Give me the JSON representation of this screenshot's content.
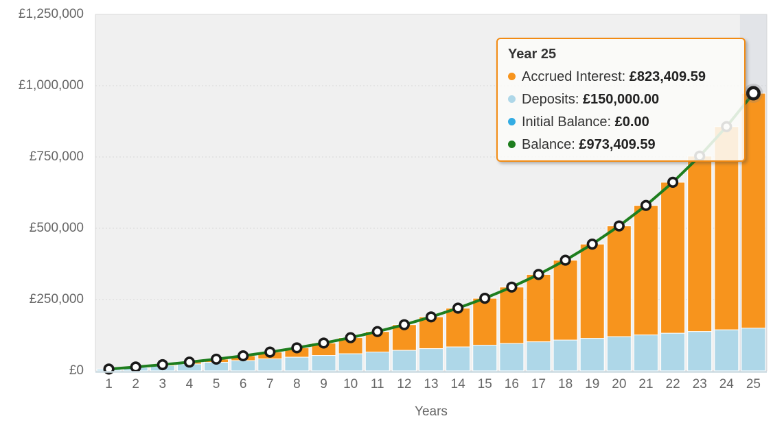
{
  "chart_data": {
    "type": "bar",
    "subtype": "stacked-column-with-line",
    "title": "",
    "xlabel": "Years",
    "ylabel": "",
    "categories": [
      "1",
      "2",
      "3",
      "4",
      "5",
      "6",
      "7",
      "8",
      "9",
      "10",
      "11",
      "12",
      "13",
      "14",
      "15",
      "16",
      "17",
      "18",
      "19",
      "20",
      "21",
      "22",
      "23",
      "24",
      "25"
    ],
    "ylim": [
      0,
      1250000
    ],
    "yticks": [
      0,
      250000,
      500000,
      750000,
      1000000,
      1250000
    ],
    "ytick_labels": [
      "£0",
      "£250,000",
      "£500,000",
      "£750,000",
      "£1,000,000",
      "£1,250,000"
    ],
    "grid": true,
    "legend_position": "none",
    "highlighted_year": 25,
    "series": [
      {
        "name": "Initial Balance",
        "type": "column",
        "color": "#33ace3",
        "values": [
          0,
          0,
          0,
          0,
          0,
          0,
          0,
          0,
          0,
          0,
          0,
          0,
          0,
          0,
          0,
          0,
          0,
          0,
          0,
          0,
          0,
          0,
          0,
          0,
          0
        ]
      },
      {
        "name": "Deposits",
        "type": "column",
        "color": "#aed7e8",
        "values": [
          6000,
          12000,
          18000,
          24000,
          30000,
          36000,
          42000,
          48000,
          54000,
          60000,
          66000,
          72000,
          78000,
          84000,
          90000,
          96000,
          102000,
          108000,
          114000,
          120000,
          126000,
          132000,
          138000,
          144000,
          150000
        ]
      },
      {
        "name": "Accrued Interest",
        "type": "column",
        "color": "#f7941d",
        "values": [
          347,
          1514,
          3606,
          6742,
          11051,
          16699,
          23852,
          32700,
          43467,
          56381,
          71742,
          89869,
          111108,
          135871,
          164567,
          197776,
          236077,
          280067,
          330477,
          388139,
          454053,
          529277,
          614976,
          712449,
          823409.59
        ]
      },
      {
        "name": "Balance",
        "type": "line",
        "color": "#1e7e1e",
        "values": [
          6347,
          13514,
          21606,
          30742,
          41051,
          52699,
          65852,
          80700,
          97467,
          116381,
          137742,
          161869,
          189108,
          219871,
          254567,
          293776,
          338077,
          388067,
          444477,
          508139,
          580053,
          661277,
          752976,
          856449,
          973409.59
        ]
      }
    ],
    "colors": {
      "plot_background": "#f0f0f0",
      "plot_border": "#d9d9d9",
      "grid_line": "#d8d8d8",
      "axis_text": "#666666",
      "bottom_axis_line": "#ccdbe2",
      "hover_band": "#c9cedb",
      "marker_stroke": "#1a1a1a",
      "marker_fill": "#ffffff",
      "halo": "#888888"
    }
  },
  "tooltip": {
    "title": "Year 25",
    "border_color": "#f28b13",
    "rows": [
      {
        "label": "Accrued Interest: ",
        "value": "£823,409.59",
        "color": "#f7941d"
      },
      {
        "label": "Deposits: ",
        "value": "£150,000.00",
        "color": "#aed7e8"
      },
      {
        "label": "Initial Balance: ",
        "value": "£0.00",
        "color": "#33ace3"
      },
      {
        "label": "Balance: ",
        "value": "£973,409.59",
        "color": "#1e7e1e"
      }
    ]
  }
}
